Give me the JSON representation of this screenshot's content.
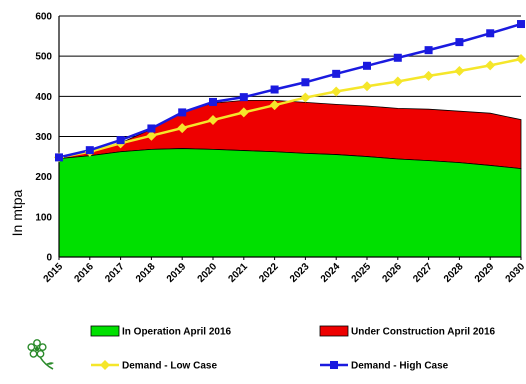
{
  "chart_data": {
    "type": "area",
    "x": [
      2015,
      2016,
      2017,
      2018,
      2019,
      2020,
      2021,
      2022,
      2023,
      2024,
      2025,
      2026,
      2027,
      2028,
      2029,
      2030
    ],
    "x_tick_labels": [
      "2015",
      "2016",
      "2017",
      "2018",
      "2019",
      "2020",
      "2021",
      "2022",
      "2023",
      "2024",
      "2025",
      "2026",
      "2027",
      "2028",
      "2029",
      "2030"
    ],
    "ylabel": "In mtpa",
    "ylim": [
      0,
      600
    ],
    "y_ticks": [
      0,
      100,
      200,
      300,
      400,
      500,
      600
    ],
    "grid": "horizontal",
    "legend_position": "bottom",
    "series": [
      {
        "name": "In Operation April 2016",
        "kind": "stacked-area",
        "color": "#00e000",
        "values": [
          245,
          252,
          262,
          268,
          270,
          268,
          265,
          262,
          258,
          255,
          250,
          244,
          240,
          235,
          228,
          220
        ]
      },
      {
        "name": "Under Construction April 2016",
        "kind": "stacked-area",
        "color": "#ee0000",
        "values": [
          0,
          10,
          22,
          50,
          90,
          115,
          125,
          128,
          127,
          125,
          126,
          126,
          128,
          128,
          130,
          122
        ]
      },
      {
        "name": "Demand - Low Case",
        "kind": "line",
        "color": "#f5e62a",
        "values": [
          248,
          262,
          283,
          302,
          321,
          341,
          360,
          378,
          397,
          412,
          425,
          437,
          451,
          463,
          477,
          493
        ]
      },
      {
        "name": "Demand - High Case",
        "kind": "line",
        "color": "#1a1adf",
        "values": [
          248,
          266,
          291,
          320,
          360,
          386,
          398,
          417,
          435,
          456,
          476,
          496,
          515,
          535,
          557,
          580
        ]
      }
    ]
  },
  "legend": {
    "items": [
      {
        "label": "In Operation April 2016",
        "color": "#00e000",
        "swatch": "box"
      },
      {
        "label": "Under Construction April 2016",
        "color": "#ee0000",
        "swatch": "box"
      },
      {
        "label": "Demand - Low Case",
        "color": "#f5e62a",
        "swatch": "line-diamond"
      },
      {
        "label": "Demand - High Case",
        "color": "#1a1adf",
        "swatch": "line-square"
      }
    ]
  },
  "logo_icon": "flower-icon"
}
